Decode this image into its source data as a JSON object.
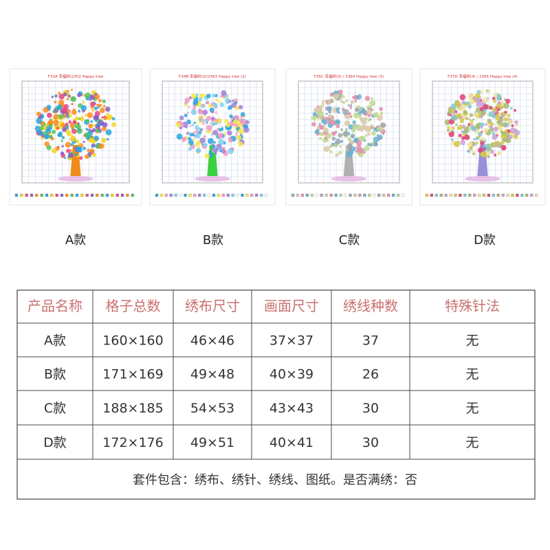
{
  "products": [
    {
      "pattern_title": "F33A 幸福树/2352 Happy tree",
      "label": "A款"
    },
    {
      "pattern_title": "F34B 幸福树(2)/2363 Happy tree (2)",
      "label": "B款"
    },
    {
      "pattern_title": "F35C 幸福树(3) / 2364 Happy tree (3)",
      "label": "C款"
    },
    {
      "pattern_title": "F37D 幸福树(4) / 2365 Happy tree (4)",
      "label": "D款"
    }
  ],
  "table": {
    "headers": [
      "产品名称",
      "格子总数",
      "绣布尺寸",
      "画面尺寸",
      "绣线种数",
      "特殊针法"
    ],
    "rows": [
      [
        "A款",
        "160×160",
        "46×46",
        "37×37",
        "37",
        "无"
      ],
      [
        "B款",
        "171×169",
        "49×48",
        "40×39",
        "26",
        "无"
      ],
      [
        "C款",
        "188×185",
        "54×53",
        "43×43",
        "30",
        "无"
      ],
      [
        "D款",
        "172×176",
        "49×51",
        "40×41",
        "30",
        "无"
      ]
    ],
    "footer": "套件包含：绣布、绣针、绣线、图纸。是否满绣：否"
  }
}
